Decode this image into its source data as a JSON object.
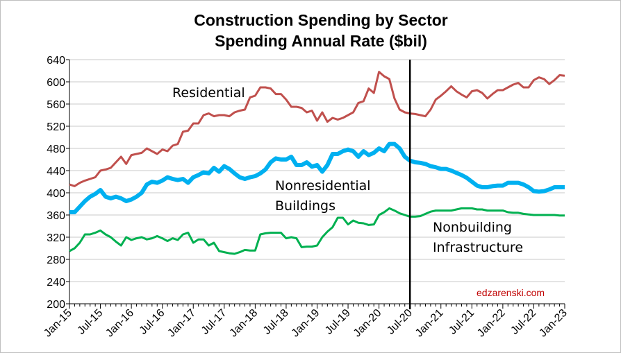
{
  "chart_data": {
    "type": "line",
    "title": "Construction Spending by Sector",
    "subtitle": "Spending Annual Rate ($bil)",
    "categories": [
      "Jan-15",
      null,
      null,
      null,
      null,
      null,
      "Jul-15",
      null,
      null,
      null,
      null,
      null,
      "Jan-16",
      null,
      null,
      null,
      null,
      null,
      "Jul-16",
      null,
      null,
      null,
      null,
      null,
      "Jan-17",
      null,
      null,
      null,
      null,
      null,
      "Jul-17",
      null,
      null,
      null,
      null,
      null,
      "Jan-18",
      null,
      null,
      null,
      null,
      null,
      "Jul-18",
      null,
      null,
      null,
      null,
      null,
      "Jan-19",
      null,
      null,
      null,
      null,
      null,
      "Jul-19",
      null,
      null,
      null,
      null,
      null,
      "Jan-20",
      null,
      null,
      null,
      null,
      null,
      "Jul-20",
      null,
      null,
      null,
      null,
      null,
      "Jan-21",
      null,
      null,
      null,
      null,
      null,
      "Jul-21",
      null,
      null,
      null,
      null,
      null,
      "Jan-22",
      null,
      null,
      null,
      null,
      null,
      "Jul-22",
      null,
      null,
      null,
      null,
      null,
      "Jan-23"
    ],
    "series": [
      {
        "name": "Residential",
        "color": "#c0504d",
        "width": 3,
        "values": [
          415,
          412,
          418,
          422,
          425,
          428,
          440,
          442,
          445,
          455,
          465,
          452,
          468,
          470,
          472,
          480,
          475,
          470,
          478,
          475,
          485,
          488,
          510,
          512,
          525,
          525,
          540,
          543,
          538,
          540,
          540,
          538,
          545,
          548,
          550,
          572,
          575,
          590,
          590,
          588,
          578,
          578,
          568,
          555,
          555,
          553,
          545,
          548,
          530,
          545,
          528,
          535,
          532,
          535,
          540,
          545,
          562,
          565,
          588,
          580,
          618,
          610,
          605,
          570,
          550,
          545,
          543,
          542,
          540,
          538,
          550,
          568,
          575,
          583,
          592,
          583,
          577,
          572,
          583,
          585,
          580,
          570,
          578,
          585,
          585,
          590,
          595,
          598,
          590,
          590,
          603,
          608,
          605,
          596,
          603,
          612,
          611
        ]
      },
      {
        "name": "Nonresidential Buildings",
        "color": "#00b0f0",
        "width": 6,
        "values": [
          365,
          365,
          375,
          385,
          393,
          398,
          405,
          393,
          390,
          393,
          390,
          385,
          388,
          393,
          400,
          415,
          420,
          418,
          422,
          428,
          425,
          423,
          425,
          418,
          428,
          432,
          437,
          435,
          445,
          438,
          448,
          443,
          435,
          428,
          425,
          428,
          430,
          435,
          442,
          455,
          462,
          460,
          460,
          465,
          450,
          450,
          455,
          447,
          450,
          438,
          450,
          470,
          470,
          475,
          478,
          475,
          465,
          475,
          468,
          472,
          480,
          475,
          488,
          488,
          480,
          465,
          458,
          455,
          454,
          452,
          448,
          446,
          443,
          443,
          440,
          436,
          432,
          427,
          420,
          413,
          410,
          410,
          412,
          413,
          413,
          418,
          418,
          418,
          415,
          410,
          403,
          402,
          403,
          406,
          410,
          410,
          410
        ]
      },
      {
        "name": "Nonbuilding Infrastructure",
        "color": "#00b050",
        "width": 3,
        "values": [
          295,
          300,
          310,
          325,
          325,
          328,
          332,
          325,
          320,
          312,
          305,
          320,
          315,
          318,
          320,
          316,
          318,
          322,
          318,
          313,
          318,
          315,
          325,
          328,
          310,
          316,
          316,
          305,
          310,
          295,
          293,
          291,
          290,
          293,
          297,
          296,
          296,
          325,
          327,
          328,
          328,
          328,
          318,
          320,
          318,
          302,
          303,
          303,
          305,
          320,
          330,
          338,
          355,
          355,
          343,
          350,
          346,
          345,
          342,
          343,
          360,
          365,
          372,
          368,
          363,
          360,
          357,
          357,
          358,
          362,
          366,
          368,
          368,
          368,
          368,
          370,
          372,
          372,
          372,
          370,
          370,
          368,
          368,
          368,
          368,
          365,
          364,
          364,
          362,
          361,
          360,
          360,
          360,
          360,
          360,
          359,
          359
        ]
      }
    ],
    "annotations": [
      "Residential",
      "Nonresidential",
      "Buildings",
      "Nonbuilding",
      "Infrastructure",
      "edzarenski.com"
    ],
    "divider_at": "Jul-20",
    "ylim": [
      200,
      640
    ],
    "yticks": [
      200,
      240,
      280,
      320,
      360,
      400,
      440,
      480,
      520,
      560,
      600,
      640
    ],
    "grid": true
  }
}
